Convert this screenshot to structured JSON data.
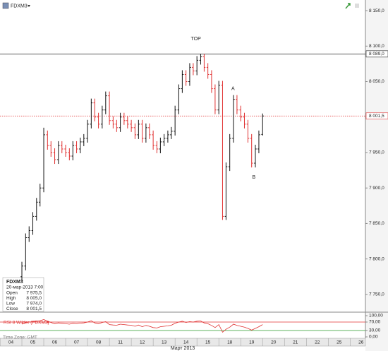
{
  "chart_data": {
    "type": "ohlc",
    "title": "FDXM3",
    "x_label": "Март 2013",
    "time_zone": "Time Zone: GMT",
    "x": [
      1,
      1.17,
      1.33,
      1.5,
      1.67,
      1.83,
      2,
      2.17,
      2.33,
      2.5,
      2.67,
      2.83,
      3,
      3.17,
      3.33,
      3.5,
      3.67,
      3.83,
      4,
      4.17,
      4.33,
      4.5,
      4.67,
      4.83,
      5,
      5.17,
      5.33,
      5.5,
      5.67,
      5.83,
      6,
      6.17,
      6.33,
      6.5,
      6.67,
      6.83,
      7,
      7.17,
      7.33,
      7.5,
      7.67,
      7.83,
      8,
      8.17,
      8.33,
      8.5,
      8.67,
      8.83,
      9,
      9.17,
      9.33,
      9.5,
      9.67,
      9.83,
      10,
      10.17,
      10.33,
      10.5,
      10.67,
      10.83,
      11,
      11.17,
      11.33,
      11.5,
      11.67,
      11.83,
      12
    ],
    "open": [
      7775,
      7790,
      7830,
      7840,
      7860,
      7880,
      7900,
      7975,
      7960,
      7950,
      7940,
      7960,
      7955,
      7950,
      7945,
      7960,
      7955,
      7965,
      7970,
      7990,
      8020,
      8000,
      7990,
      8010,
      8030,
      7995,
      7990,
      7985,
      8000,
      7995,
      7990,
      7985,
      7975,
      7990,
      7970,
      7985,
      7975,
      7960,
      7955,
      7965,
      7970,
      7975,
      7980,
      8010,
      8040,
      8060,
      8050,
      8070,
      8065,
      8080,
      8085,
      8070,
      8060,
      8040,
      8010,
      8045,
      7860,
      7930,
      7970,
      8025,
      8010,
      8000,
      7990,
      7970,
      7935,
      7955,
      7975.5
    ],
    "high": [
      7796,
      7836,
      7846,
      7866,
      7886,
      7906,
      7985,
      7981,
      7966,
      7956,
      7966,
      7966,
      7961,
      7956,
      7966,
      7966,
      7971,
      7976,
      7996,
      8026,
      8026,
      8006,
      8016,
      8036,
      8036,
      8001,
      7996,
      8006,
      8006,
      8001,
      7996,
      7991,
      7996,
      7996,
      7991,
      7991,
      7981,
      7966,
      7971,
      7976,
      7981,
      7986,
      8016,
      8046,
      8066,
      8066,
      8076,
      8076,
      8086,
      8089,
      8089,
      8076,
      8066,
      8046,
      8051,
      8051,
      7936,
      7976,
      8031,
      8031,
      8016,
      8006,
      7996,
      7976,
      7961,
      7981,
      8005
    ],
    "low": [
      7769,
      7784,
      7824,
      7834,
      7854,
      7874,
      7894,
      7954,
      7944,
      7934,
      7934,
      7949,
      7944,
      7939,
      7939,
      7949,
      7949,
      7959,
      7964,
      7984,
      7994,
      7984,
      7984,
      8004,
      7989,
      7984,
      7979,
      7979,
      7989,
      7984,
      7979,
      7969,
      7969,
      7964,
      7964,
      7969,
      7954,
      7949,
      7949,
      7959,
      7964,
      7969,
      7974,
      8004,
      8034,
      8044,
      8044,
      8059,
      8059,
      8074,
      8064,
      8054,
      8034,
      8004,
      8004,
      7855,
      7855,
      7924,
      7964,
      8004,
      7994,
      7984,
      7964,
      7929,
      7929,
      7949,
      7974
    ],
    "close": [
      7790,
      7830,
      7840,
      7860,
      7880,
      7900,
      7975,
      7960,
      7950,
      7940,
      7960,
      7955,
      7950,
      7945,
      7960,
      7955,
      7965,
      7970,
      7990,
      8020,
      8000,
      7990,
      8010,
      8030,
      7995,
      7990,
      7985,
      8000,
      7995,
      7990,
      7985,
      7975,
      7990,
      7970,
      7985,
      7975,
      7960,
      7955,
      7965,
      7970,
      7975,
      7980,
      8010,
      8040,
      8060,
      8050,
      8070,
      8065,
      8080,
      8085,
      8070,
      8060,
      8040,
      8010,
      8045,
      7860,
      7930,
      7970,
      8025,
      8010,
      8000,
      7990,
      7970,
      7935,
      7955,
      7975,
      8001.5
    ],
    "up_color": "#111111",
    "down_color": "#e03030",
    "xlim": [
      0,
      16.7
    ],
    "xticks": [
      {
        "value": 0,
        "label": "04"
      },
      {
        "value": 1,
        "label": "05"
      },
      {
        "value": 2,
        "label": "06"
      },
      {
        "value": 3,
        "label": "07"
      },
      {
        "value": 4,
        "label": "08"
      },
      {
        "value": 5,
        "label": "11"
      },
      {
        "value": 6,
        "label": "12"
      },
      {
        "value": 7,
        "label": "13"
      },
      {
        "value": 8,
        "label": "14"
      },
      {
        "value": 9,
        "label": "15"
      },
      {
        "value": 10,
        "label": "18"
      },
      {
        "value": 11,
        "label": "19"
      },
      {
        "value": 12,
        "label": "20"
      },
      {
        "value": 13,
        "label": "21"
      },
      {
        "value": 14,
        "label": "22"
      },
      {
        "value": 15,
        "label": "25"
      },
      {
        "value": 16,
        "label": "26"
      }
    ],
    "ylim": [
      7725,
      8165
    ],
    "yticks": [
      {
        "value": 7750,
        "label": "7 750,0"
      },
      {
        "value": 7800,
        "label": "7 800,0"
      },
      {
        "value": 7850,
        "label": "7 850,0"
      },
      {
        "value": 7900,
        "label": "7 900,0"
      },
      {
        "value": 7950,
        "label": "7 950,0"
      },
      {
        "value": 8000,
        "label": "8 000,0"
      },
      {
        "value": 8050,
        "label": "8 050,0"
      },
      {
        "value": 8100,
        "label": "8 100,0"
      },
      {
        "value": 8150,
        "label": "8 150,0"
      }
    ],
    "levels": [
      {
        "value": 8089,
        "label": "8 089,0",
        "color": "#222222"
      },
      {
        "value": 8001.5,
        "label": "8 001,5",
        "color": "#e03030"
      }
    ],
    "annotations": [
      {
        "text": "TOP",
        "x": 8.95,
        "y": 8110
      },
      {
        "text": "A",
        "x": 10.65,
        "y": 8040
      },
      {
        "text": "B",
        "x": 11.6,
        "y": 7915
      }
    ],
    "info": {
      "symbol": "FDXM3",
      "datetime": "20-мар-2013 7:00",
      "rows": [
        [
          "Open",
          "7 975,5"
        ],
        [
          "High",
          "8 005,0"
        ],
        [
          "Low",
          "7 974,0"
        ],
        [
          "Close",
          "8 001,5"
        ]
      ]
    },
    "rsi": {
      "name": "RSI 8 Wilder (FDXM3)",
      "color": "#e03030",
      "values": [
        60,
        68,
        70,
        72,
        74,
        76,
        82,
        74,
        68,
        62,
        66,
        64,
        62,
        60,
        64,
        62,
        65,
        66,
        70,
        76,
        66,
        62,
        68,
        72,
        58,
        56,
        55,
        60,
        58,
        56,
        55,
        50,
        56,
        48,
        54,
        50,
        44,
        42,
        48,
        50,
        52,
        55,
        64,
        70,
        74,
        68,
        72,
        70,
        74,
        75,
        66,
        62,
        54,
        44,
        58,
        22,
        36,
        46,
        60,
        54,
        50,
        46,
        40,
        32,
        40,
        48,
        58
      ],
      "ylim": [
        0,
        100
      ],
      "yticks": [
        {
          "value": 0,
          "label": "0,00"
        },
        {
          "value": 30,
          "label": "30,00"
        },
        {
          "value": 70,
          "label": "70,00"
        },
        {
          "value": 100,
          "label": "100,00"
        }
      ],
      "levels": [
        {
          "value": 70,
          "color": "#e03030"
        },
        {
          "value": 30,
          "color": "#2a9a2a"
        }
      ]
    }
  }
}
